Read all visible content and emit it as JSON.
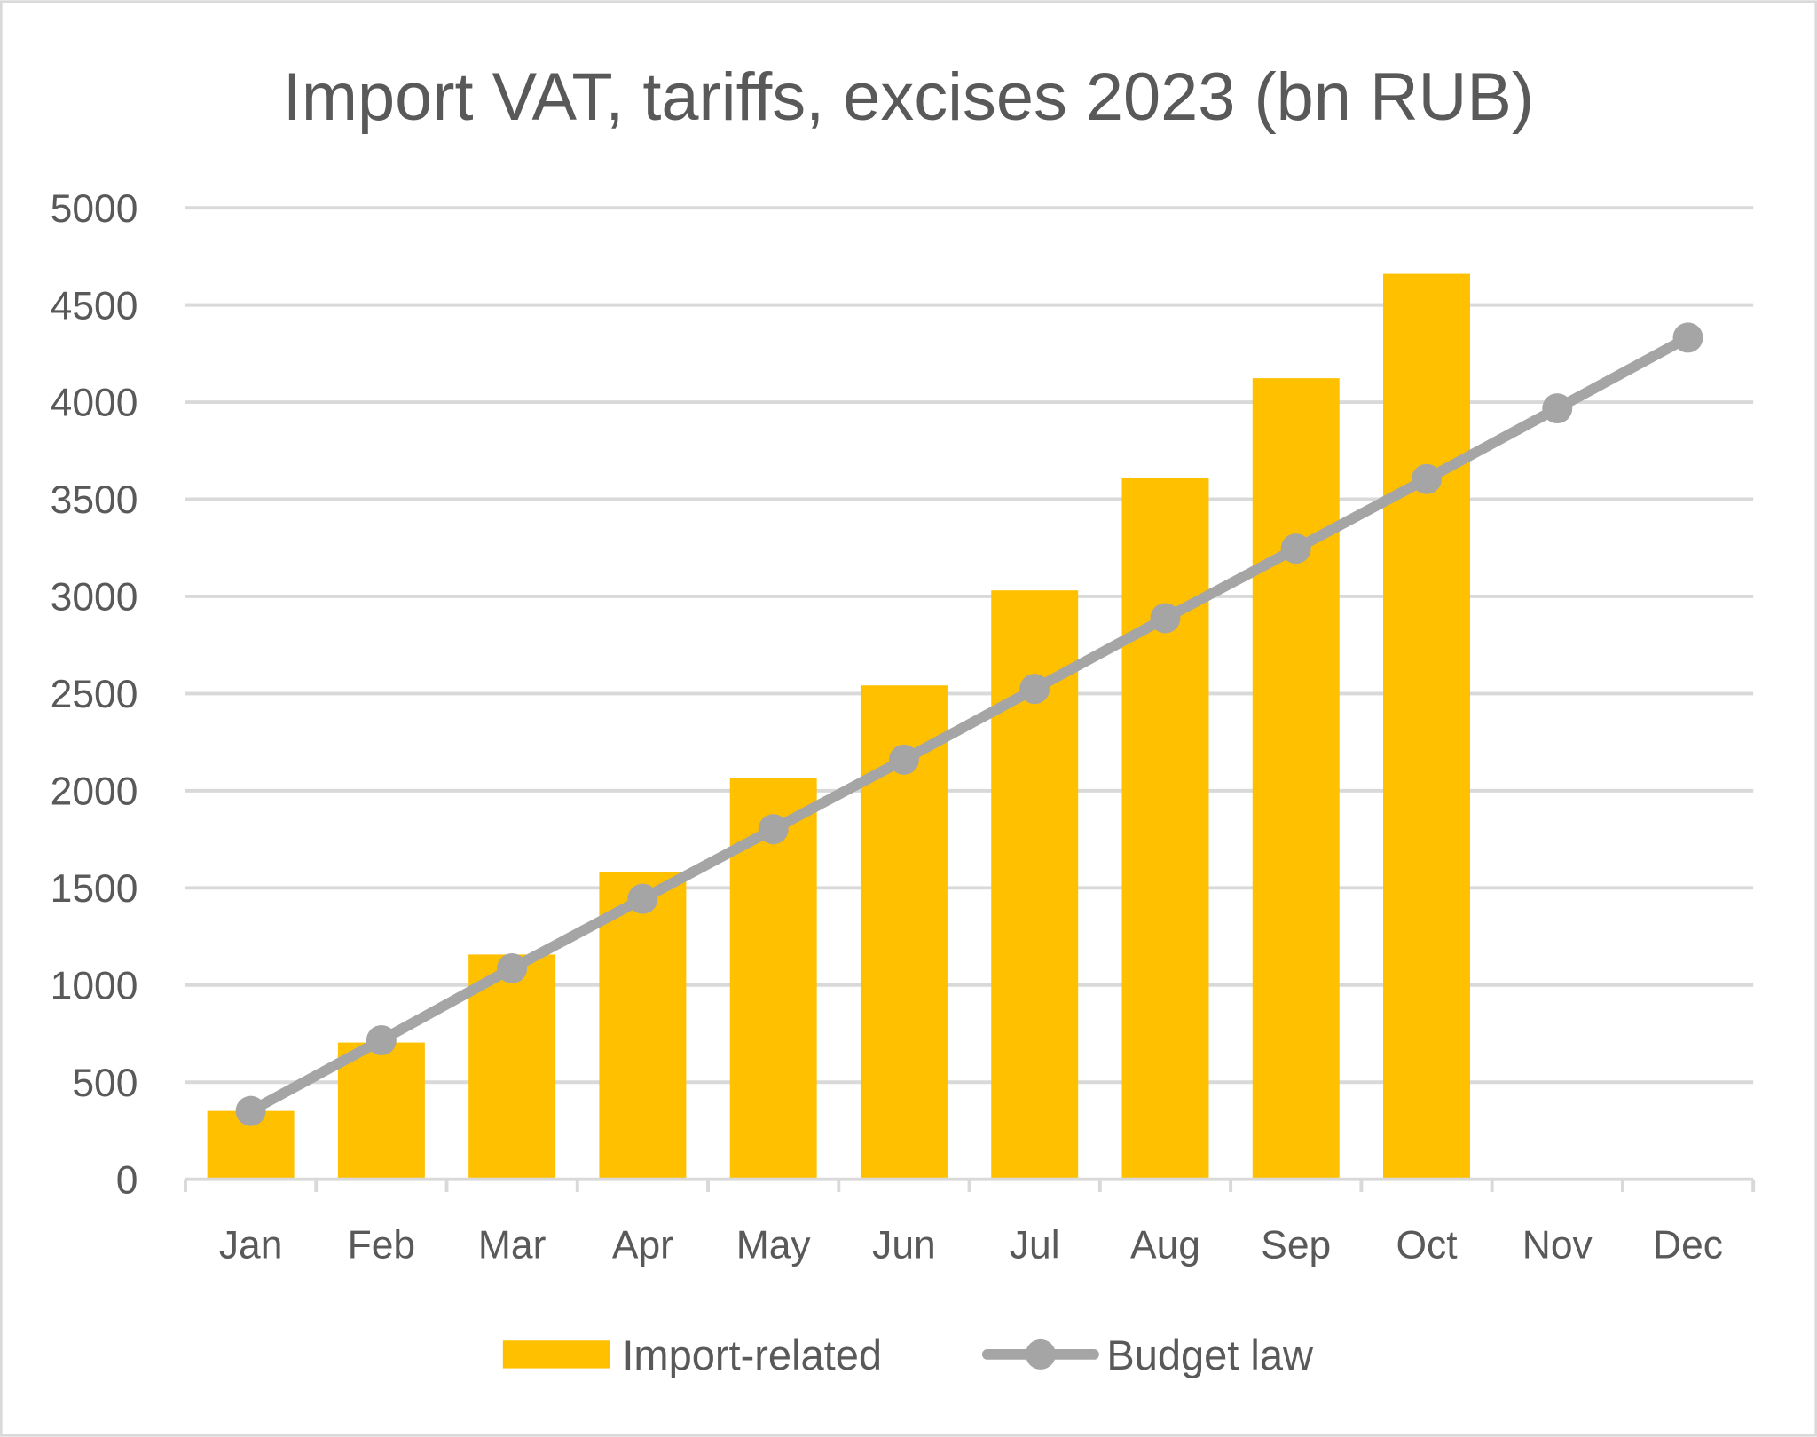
{
  "chart_data": {
    "type": "bar",
    "title": "Import VAT, tariffs, excises 2023 (bn RUB)",
    "xlabel": "",
    "ylabel": "",
    "ylim": [
      0,
      5000
    ],
    "yticks": [
      "0",
      "500",
      "1000",
      "1500",
      "2000",
      "2500",
      "3000",
      "3500",
      "4000",
      "4500",
      "5000"
    ],
    "grid": true,
    "legend_position": "bottom",
    "categories": [
      "Jan",
      "Feb",
      "Mar",
      "Apr",
      "May",
      "Jun",
      "Jul",
      "Aug",
      "Sep",
      "Oct",
      "Nov",
      "Dec"
    ],
    "series": [
      {
        "name": "Import-related",
        "type": "bar",
        "color": "#FFC000",
        "values": [
          352,
          704,
          1157,
          1581,
          2064,
          2542,
          3031,
          3610,
          4123,
          4660,
          null,
          null
        ]
      },
      {
        "name": "Budget law",
        "type": "line",
        "color": "#A5A5A5",
        "values": [
          352,
          716,
          1086,
          1444,
          1802,
          2160,
          2524,
          2888,
          3246,
          3604,
          3968,
          4332
        ]
      }
    ]
  }
}
